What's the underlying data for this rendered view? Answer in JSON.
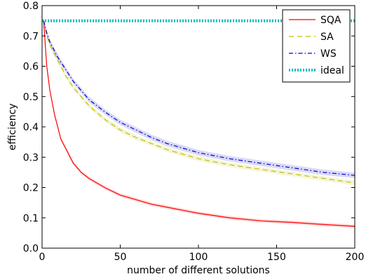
{
  "chart_data": {
    "type": "line",
    "title": "",
    "xlabel": "number of different solutions",
    "ylabel": "efficiency",
    "xlim": [
      0,
      200
    ],
    "ylim": [
      0.0,
      0.8
    ],
    "xticks": [
      0,
      50,
      100,
      150,
      200
    ],
    "xtick_labels": [
      "0",
      "50",
      "100",
      "150",
      "200"
    ],
    "yticks": [
      0.0,
      0.1,
      0.2,
      0.3,
      0.4,
      0.5,
      0.6,
      0.7,
      0.8
    ],
    "ytick_labels": [
      "0.0",
      "0.1",
      "0.2",
      "0.3",
      "0.4",
      "0.5",
      "0.6",
      "0.7",
      "0.8"
    ],
    "grid": false,
    "legend_position": "top-right",
    "series": [
      {
        "name": "SQA",
        "color": "#ff0000",
        "dash": "solid",
        "band": 0.006,
        "x": [
          1,
          3,
          5,
          8,
          10,
          12,
          15,
          20,
          25,
          30,
          40,
          50,
          60,
          70,
          80,
          90,
          100,
          120,
          140,
          160,
          180,
          200
        ],
        "y": [
          0.75,
          0.6,
          0.52,
          0.44,
          0.4,
          0.36,
          0.33,
          0.28,
          0.25,
          0.23,
          0.2,
          0.175,
          0.16,
          0.145,
          0.135,
          0.125,
          0.115,
          0.1,
          0.09,
          0.085,
          0.078,
          0.072
        ]
      },
      {
        "name": "SA",
        "color": "#bfbf00",
        "dash": "7,5",
        "band": 0.008,
        "x": [
          1,
          3,
          5,
          8,
          10,
          15,
          20,
          30,
          40,
          50,
          60,
          70,
          80,
          90,
          100,
          120,
          140,
          160,
          180,
          200
        ],
        "y": [
          0.75,
          0.7,
          0.67,
          0.64,
          0.62,
          0.57,
          0.53,
          0.47,
          0.425,
          0.39,
          0.365,
          0.345,
          0.325,
          0.31,
          0.295,
          0.275,
          0.26,
          0.245,
          0.23,
          0.215
        ]
      },
      {
        "name": "WS",
        "color": "#0000cc",
        "dash": "6,3,1.5,3",
        "band": 0.009,
        "x": [
          1,
          3,
          5,
          8,
          10,
          15,
          20,
          30,
          40,
          50,
          60,
          70,
          80,
          90,
          100,
          120,
          140,
          160,
          180,
          200
        ],
        "y": [
          0.75,
          0.71,
          0.68,
          0.65,
          0.63,
          0.59,
          0.55,
          0.49,
          0.45,
          0.415,
          0.39,
          0.365,
          0.345,
          0.33,
          0.315,
          0.295,
          0.28,
          0.265,
          0.25,
          0.24
        ]
      },
      {
        "name": "ideal",
        "color": "#00bfbf",
        "dash": "2,2",
        "band": 0,
        "x": [
          0,
          200
        ],
        "y": [
          0.75,
          0.75
        ]
      }
    ]
  }
}
